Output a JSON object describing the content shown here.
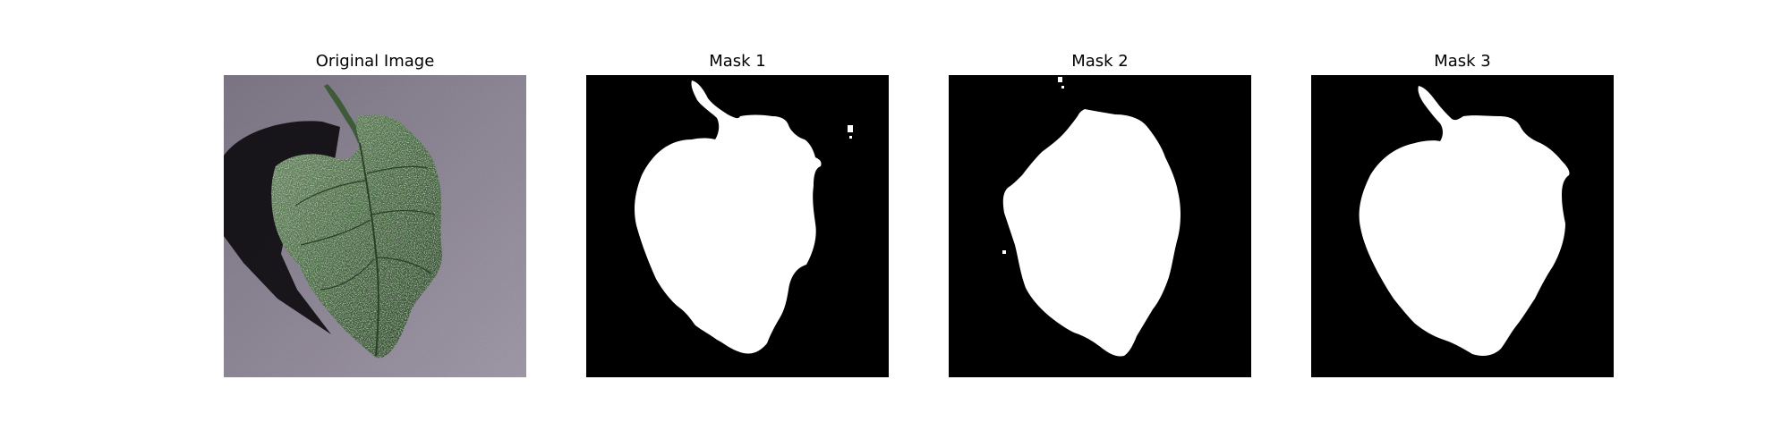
{
  "panels": [
    {
      "title": "Original Image"
    },
    {
      "title": "Mask 1"
    },
    {
      "title": "Mask 2"
    },
    {
      "title": "Mask 3"
    }
  ],
  "colors": {
    "mask_background": "#000000",
    "mask_foreground": "#ffffff",
    "leaf_dark": "#2e4a2a",
    "leaf_mid": "#4b6e45",
    "leaf_light": "#6f8d67",
    "surface": "#8f8797",
    "shadow": "#121014"
  }
}
